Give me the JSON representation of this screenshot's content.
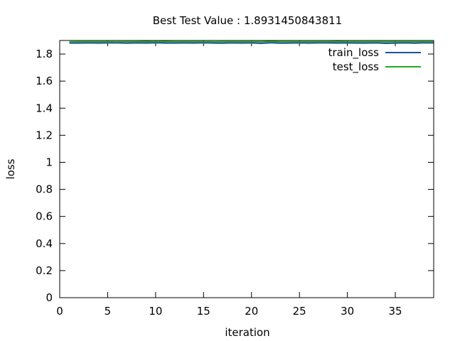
{
  "chart_data": {
    "type": "line",
    "title": "Best Test Value : 1.8931450843811",
    "xlabel": "iteration",
    "ylabel": "loss",
    "xlim": [
      0,
      39
    ],
    "ylim": [
      0,
      1.9
    ],
    "x_ticks": [
      0,
      5,
      10,
      15,
      20,
      25,
      30,
      35
    ],
    "y_ticks": [
      0,
      0.2,
      0.4,
      0.6,
      0.8,
      1,
      1.2,
      1.4,
      1.6,
      1.8
    ],
    "legend_position": "top-right",
    "grid": false,
    "series": [
      {
        "name": "train_loss",
        "color": "#1f4fa3",
        "x": [
          1,
          2,
          3,
          4,
          5,
          6,
          7,
          8,
          9,
          10,
          11,
          12,
          13,
          14,
          15,
          16,
          17,
          18,
          19,
          20,
          21,
          22,
          23,
          24,
          25,
          26,
          27,
          28,
          29,
          30,
          31,
          32,
          33,
          34,
          35,
          36,
          37,
          38,
          39
        ],
        "values": [
          1.881,
          1.881,
          1.882,
          1.881,
          1.882,
          1.882,
          1.88,
          1.882,
          1.881,
          1.883,
          1.881,
          1.881,
          1.882,
          1.881,
          1.883,
          1.881,
          1.88,
          1.882,
          1.881,
          1.882,
          1.879,
          1.883,
          1.88,
          1.881,
          1.882,
          1.881,
          1.882,
          1.882,
          1.881,
          1.882,
          1.881,
          1.881,
          1.882,
          1.879,
          1.881,
          1.882,
          1.88,
          1.883,
          1.882
        ]
      },
      {
        "name": "test_loss",
        "color": "#22aa22",
        "x": [
          1,
          2,
          3,
          4,
          5,
          6,
          7,
          8,
          9,
          10,
          11,
          12,
          13,
          14,
          15,
          16,
          17,
          18,
          19,
          20,
          21,
          22,
          23,
          24,
          25,
          26,
          27,
          28,
          29,
          30,
          31,
          32,
          33,
          34,
          35,
          36,
          37,
          38,
          39
        ],
        "values": [
          1.89,
          1.891,
          1.891,
          1.891,
          1.891,
          1.89,
          1.891,
          1.891,
          1.892,
          1.891,
          1.892,
          1.891,
          1.891,
          1.891,
          1.891,
          1.89,
          1.891,
          1.891,
          1.891,
          1.891,
          1.891,
          1.893,
          1.891,
          1.891,
          1.891,
          1.891,
          1.891,
          1.891,
          1.892,
          1.891,
          1.891,
          1.891,
          1.891,
          1.891,
          1.891,
          1.891,
          1.891,
          1.891,
          1.891
        ]
      }
    ]
  }
}
